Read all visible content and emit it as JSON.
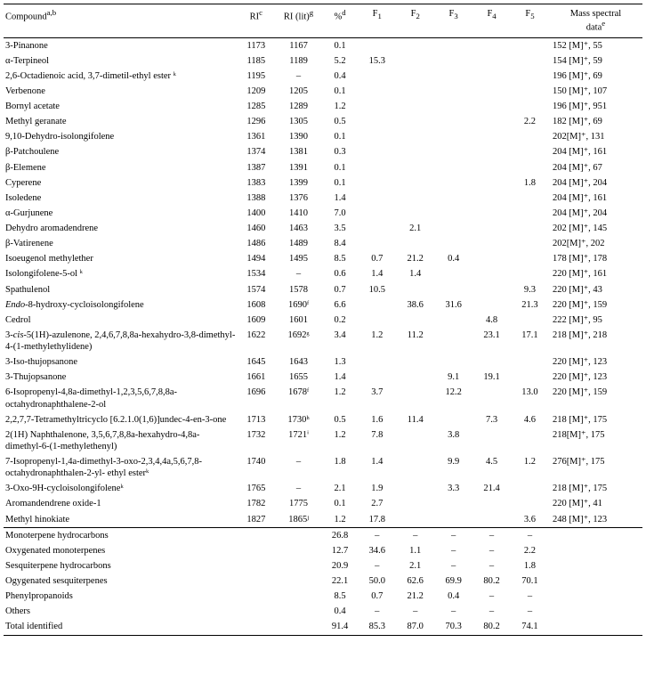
{
  "columns": {
    "compound": "Compound",
    "compound_sup": "a,b",
    "ri": "RI",
    "ri_sup": "c",
    "rilit": "RI (lit)",
    "rilit_sup": "g",
    "pct": "%",
    "pct_sup": "d",
    "f1": "F",
    "f1_sub": "1",
    "f2": "F",
    "f2_sub": "2",
    "f3": "F",
    "f3_sub": "3",
    "f4": "F",
    "f4_sub": "4",
    "f5": "F",
    "f5_sub": "5",
    "ms_l1": "Mass spectral",
    "ms_l2": "data",
    "ms_sup": "e"
  },
  "rows": [
    {
      "c": "3-Pinanone",
      "ri": "1173",
      "rl": "1167",
      "p": "0.1",
      "f1": "",
      "f2": "",
      "f3": "",
      "f4": "",
      "f5": "",
      "ms": "152 [M]⁺, 55"
    },
    {
      "c": "α-Terpineol",
      "ri": "1185",
      "rl": "1189",
      "p": "5.2",
      "f1": "15.3",
      "f2": "",
      "f3": "",
      "f4": "",
      "f5": "",
      "ms": "154 [M]⁺, 59"
    },
    {
      "c": "2,6-Octadienoic acid, 3,7-dimetil-ethyl ester ᵏ",
      "ri": "1195",
      "rl": "–",
      "p": "0.4",
      "f1": "",
      "f2": "",
      "f3": "",
      "f4": "",
      "f5": "",
      "ms": "196 [M]⁺, 69"
    },
    {
      "c": "Verbenone",
      "ri": "1209",
      "rl": "1205",
      "p": "0.1",
      "f1": "",
      "f2": "",
      "f3": "",
      "f4": "",
      "f5": "",
      "ms": "150 [M]⁺, 107"
    },
    {
      "c": "Bornyl acetate",
      "ri": "1285",
      "rl": "1289",
      "p": "1.2",
      "f1": "",
      "f2": "",
      "f3": "",
      "f4": "",
      "f5": "",
      "ms": "196 [M]⁺, 951"
    },
    {
      "c": "Methyl geranate",
      "ri": "1296",
      "rl": "1305",
      "p": "0.5",
      "f1": "",
      "f2": "",
      "f3": "",
      "f4": "",
      "f5": "2.2",
      "ms": "182 [M]⁺, 69"
    },
    {
      "c": "9,10-Dehydro-isolongifolene",
      "ri": "1361",
      "rl": "1390",
      "p": "0.1",
      "f1": "",
      "f2": "",
      "f3": "",
      "f4": "",
      "f5": "",
      "ms": "202[M]⁺, 131"
    },
    {
      "c": "β-Patchoulene",
      "ri": "1374",
      "rl": "1381",
      "p": "0.3",
      "f1": "",
      "f2": "",
      "f3": "",
      "f4": "",
      "f5": "",
      "ms": "204 [M]⁺, 161"
    },
    {
      "c": "β-Elemene",
      "ri": "1387",
      "rl": "1391",
      "p": "0.1",
      "f1": "",
      "f2": "",
      "f3": "",
      "f4": "",
      "f5": "",
      "ms": "204 [M]⁺, 67"
    },
    {
      "c": "Cyperene",
      "ri": "1383",
      "rl": "1399",
      "p": "0.1",
      "f1": "",
      "f2": "",
      "f3": "",
      "f4": "",
      "f5": "1.8",
      "ms": "204 [M]⁺, 204"
    },
    {
      "c": "Isoledene",
      "ri": "1388",
      "rl": "1376",
      "p": "1.4",
      "f1": "",
      "f2": "",
      "f3": "",
      "f4": "",
      "f5": "",
      "ms": "204 [M]⁺, 161"
    },
    {
      "c": "α-Gurjunene",
      "ri": "1400",
      "rl": "1410",
      "p": "7.0",
      "f1": "",
      "f2": "",
      "f3": "",
      "f4": "",
      "f5": "",
      "ms": "204 [M]⁺, 204"
    },
    {
      "c": "Dehydro aromadendrene",
      "ri": "1460",
      "rl": "1463",
      "p": "3.5",
      "f1": "",
      "f2": "2.1",
      "f3": "",
      "f4": "",
      "f5": "",
      "ms": "202 [M]⁺, 145"
    },
    {
      "c": "β-Vatirenene",
      "ri": "1486",
      "rl": "1489",
      "p": "8.4",
      "f1": "",
      "f2": "",
      "f3": "",
      "f4": "",
      "f5": "",
      "ms": "202[M]⁺, 202"
    },
    {
      "c": "Isoeugenol methylether",
      "ri": "1494",
      "rl": "1495",
      "p": "8.5",
      "f1": "0.7",
      "f2": "21.2",
      "f3": "0.4",
      "f4": "",
      "f5": "",
      "ms": "178 [M]⁺, 178"
    },
    {
      "c": "Isolongifolene-5-ol ᵏ",
      "ri": "1534",
      "rl": "–",
      "p": "0.6",
      "f1": "1.4",
      "f2": "1.4",
      "f3": "",
      "f4": "",
      "f5": "",
      "ms": "220 [M]⁺, 161"
    },
    {
      "c": "Spathulenol",
      "ri": "1574",
      "rl": "1578",
      "p": "0.7",
      "f1": "10.5",
      "f2": "",
      "f3": "",
      "f4": "",
      "f5": "9.3",
      "ms": "220 [M]⁺, 43"
    },
    {
      "c": "Endo-8-hydroxy-cycloisolongifolene",
      "ri": "1608",
      "rl": "1690ᶠ",
      "p": "6.6",
      "f1": "",
      "f2": "38.6",
      "f3": "31.6",
      "f4": "",
      "f5": "21.3",
      "ms": "220 [M]⁺, 159"
    },
    {
      "c": "Cedrol",
      "ri": "1609",
      "rl": "1601",
      "p": "0.2",
      "f1": "",
      "f2": "",
      "f3": "",
      "f4": "4.8",
      "f5": "",
      "ms": "222 [M]⁺, 95"
    },
    {
      "c": "3-cis-5(1H)-azulenone, 2,4,6,7,8,8a-hexahydro-3,8-dimethyl-4-(1-methylethylidene)",
      "ri": "1622",
      "rl": "1692ᵍ",
      "p": "3.4",
      "f1": "1.2",
      "f2": "11.2",
      "f3": "",
      "f4": "23.1",
      "f5": "17.1",
      "ms": "218 [M]⁺, 218"
    },
    {
      "c": "3-Iso-thujopsanone",
      "ri": "1645",
      "rl": "1643",
      "p": "1.3",
      "f1": "",
      "f2": "",
      "f3": "",
      "f4": "",
      "f5": "",
      "ms": "220 [M]⁺, 123"
    },
    {
      "c": "3-Thujopsanone",
      "ri": "1661",
      "rl": "1655",
      "p": "1.4",
      "f1": "",
      "f2": "",
      "f3": "9.1",
      "f4": "19.1",
      "f5": "",
      "ms": "220 [M]⁺, 123"
    },
    {
      "c": "6-Isopropenyl-4,8a-dimethyl-1,2,3,5,6,7,8,8a-octahydronaphthalene-2-ol",
      "ri": "1696",
      "rl": "1678ᶠ",
      "p": "1.2",
      "f1": "3.7",
      "f2": "",
      "f3": "12.2",
      "f4": "",
      "f5": "13.0",
      "ms": "220 [M]⁺, 159"
    },
    {
      "c": "2,2,7,7-Tetramethyltricyclo [6.2.1.0(1,6)]undec-4-en-3-one",
      "ri": "1713",
      "rl": "1730ʰ",
      "p": "0.5",
      "f1": "1.6",
      "f2": "11.4",
      "f3": "",
      "f4": "7.3",
      "f5": "4.6",
      "ms": "218 [M]⁺, 175"
    },
    {
      "c": "2(1H) Naphthalenone, 3,5,6,7,8,8a-hexahydro-4,8a-dimethyl-6-(1-methylethenyl)",
      "ri": "1732",
      "rl": "1721ⁱ",
      "p": "1.2",
      "f1": "7.8",
      "f2": "",
      "f3": "3.8",
      "f4": "",
      "f5": "",
      "ms": "218[M]⁺, 175"
    },
    {
      "c": "7-Isopropenyl-1,4a-dimethyl-3-oxo-2,3,4,4a,5,6,7,8-octahydronaphthalen-2-yl- ethyl esterᵏ",
      "ri": "1740",
      "rl": "–",
      "p": "1.8",
      "f1": "1.4",
      "f2": "",
      "f3": "9.9",
      "f4": "4.5",
      "f5": "1.2",
      "ms": "276[M]⁺, 175"
    },
    {
      "c": "3-Oxo-9H-cycloisolongifoleneᵏ",
      "ri": "1765",
      "rl": "–",
      "p": "2.1",
      "f1": "1.9",
      "f2": "",
      "f3": "3.3",
      "f4": "21.4",
      "f5": "",
      "ms": "218 [M]⁺, 175"
    },
    {
      "c": "Aromandendrene oxide-1",
      "ri": "1782",
      "rl": "1775",
      "p": "0.1",
      "f1": "2.7",
      "f2": "",
      "f3": "",
      "f4": "",
      "f5": "",
      "ms": "220 [M]⁺, 41"
    },
    {
      "c": "Methyl hinokiate",
      "ri": "1827",
      "rl": "1865ʲ",
      "p": "1.2",
      "f1": "17.8",
      "f2": "",
      "f3": "",
      "f4": "",
      "f5": "3.6",
      "ms": "248 [M]⁺, 123"
    }
  ],
  "summary": [
    {
      "c": "Monoterpene hydrocarbons",
      "p": "26.8",
      "f1": "–",
      "f2": "–",
      "f3": "–",
      "f4": "–",
      "f5": "–"
    },
    {
      "c": "Oxygenated monoterpenes",
      "p": "12.7",
      "f1": "34.6",
      "f2": "1.1",
      "f3": "–",
      "f4": "–",
      "f5": "2.2"
    },
    {
      "c": "Sesquiterpene hydrocarbons",
      "p": "20.9",
      "f1": "–",
      "f2": "2.1",
      "f3": "–",
      "f4": "–",
      "f5": "1.8"
    },
    {
      "c": "Ogygenated sesquiterpenes",
      "p": "22.1",
      "f1": "50.0",
      "f2": "62.6",
      "f3": "69.9",
      "f4": "80.2",
      "f5": "70.1"
    },
    {
      "c": "Phenylpropanoids",
      "p": "8.5",
      "f1": "0.7",
      "f2": "21.2",
      "f3": "0.4",
      "f4": "–",
      "f5": "–"
    },
    {
      "c": "Others",
      "p": "0.4",
      "f1": "–",
      "f2": "–",
      "f3": "–",
      "f4": "–",
      "f5": "–"
    },
    {
      "c": "Total identified",
      "p": "91.4",
      "f1": "85.3",
      "f2": "87.0",
      "f3": "70.3",
      "f4": "80.2",
      "f5": "74.1"
    }
  ]
}
